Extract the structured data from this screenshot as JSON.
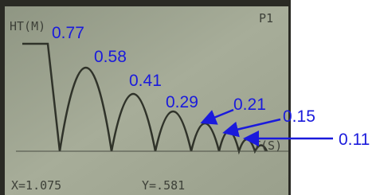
{
  "screen": {
    "y_label": "HT(M)",
    "plot_label": "P1",
    "x_label": "T(S)",
    "cursor_x": "X=1.075",
    "cursor_y": "Y=.581"
  },
  "annotations": [
    "0.77",
    "0.58",
    "0.41",
    "0.29",
    "0.21",
    "0.15",
    "0.11"
  ]
}
